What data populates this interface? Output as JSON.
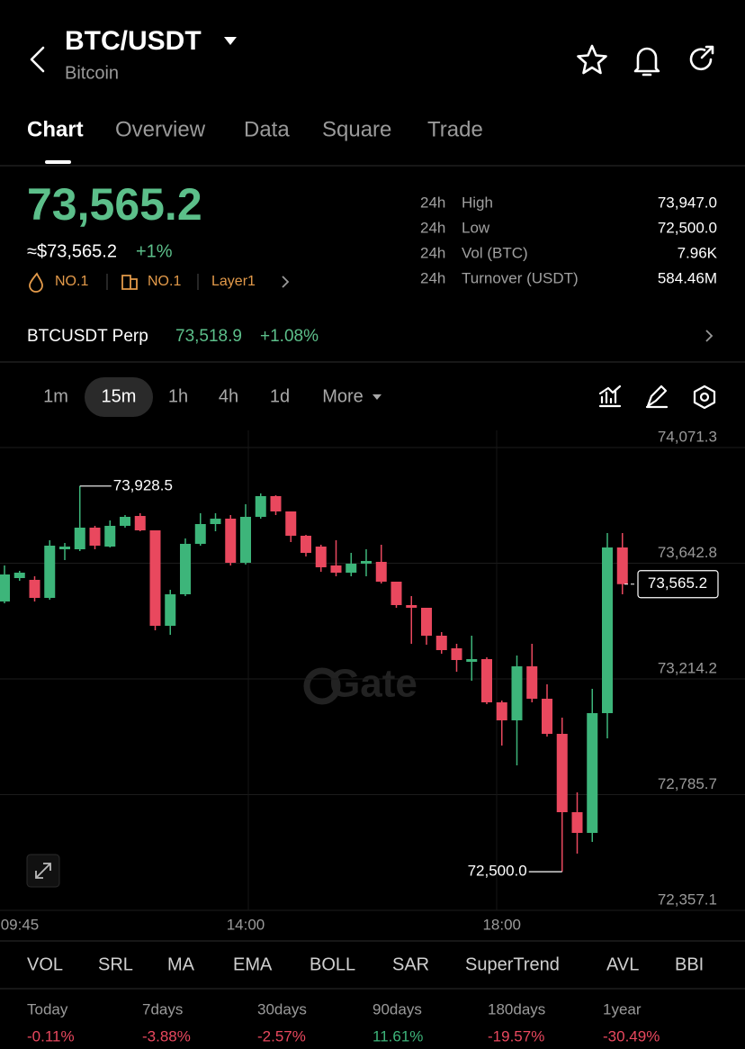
{
  "header": {
    "symbol": "BTC/USDT",
    "name": "Bitcoin"
  },
  "tabs": [
    "Chart",
    "Overview",
    "Data",
    "Square",
    "Trade"
  ],
  "price": {
    "last": "73,565.2",
    "approx": "≈$73,565.2",
    "change": "+1%",
    "badges": [
      "NO.1",
      "NO.1",
      "Layer1"
    ]
  },
  "stats": [
    {
      "period": "24h",
      "label": "High",
      "value": "73,947.0"
    },
    {
      "period": "24h",
      "label": "Low",
      "value": "72,500.0"
    },
    {
      "period": "24h",
      "label": "Vol (BTC)",
      "value": "7.96K"
    },
    {
      "period": "24h",
      "label": "Turnover (USDT)",
      "value": "584.46M"
    }
  ],
  "perp": {
    "name": "BTCUSDT Perp",
    "price": "73,518.9",
    "change": "+1.08%"
  },
  "timeframes": [
    "1m",
    "15m",
    "1h",
    "4h",
    "1d",
    "More"
  ],
  "watermark": "Gate",
  "chart_data": {
    "type": "candlestick",
    "up_color": "#3db57a",
    "down_color": "#e9485e",
    "grid": true,
    "categories": [
      "09:45",
      null,
      null,
      null,
      null,
      null,
      null,
      null,
      null,
      null,
      null,
      null,
      null,
      null,
      null,
      null,
      "14:00",
      null,
      null,
      null,
      null,
      null,
      null,
      null,
      null,
      null,
      null,
      null,
      null,
      null,
      null,
      null,
      null,
      "18:00",
      null,
      null,
      null,
      null,
      null,
      null,
      null,
      null
    ],
    "open": [
      73501.0,
      73587.7,
      73581.1,
      73514.3,
      73694.4,
      73694.4,
      73774.5,
      73704.4,
      73781.2,
      73817.8,
      73764.5,
      73411.0,
      73527.7,
      73714.5,
      73787.8,
      73807.8,
      73644.4,
      73814.5,
      73891.2,
      73834.5,
      73744.5,
      73704.4,
      73634.4,
      73607.7,
      73641.1,
      73647.8,
      73574.4,
      73487.7,
      73477.7,
      73374.3,
      73327.6,
      73277.6,
      73287.6,
      73127.5,
      73060.8,
      73260.9,
      73140.8,
      73010.8,
      72720.6,
      72643.9,
      73087.5,
      73701.1
    ],
    "high": [
      73634.4,
      73614.4,
      73594.4,
      73727.8,
      73717.8,
      73928.5,
      73781.2,
      73801.2,
      73821.2,
      73827.8,
      73764.5,
      73544.4,
      73734.5,
      73827.8,
      73827.8,
      73821.2,
      73861.2,
      73901.2,
      73894.5,
      73834.5,
      73747.8,
      73711.1,
      73727.8,
      73681.1,
      73694.4,
      73711.1,
      73574.4,
      73521.0,
      73477.7,
      73387.6,
      73344.3,
      73374.3,
      73294.2,
      73134.2,
      73300.9,
      73344.3,
      73194.2,
      73070.8,
      72794.0,
      73177.5,
      73754.5,
      73754.5
    ],
    "low": [
      73494.3,
      73577.7,
      73501.0,
      73507.7,
      73654.4,
      73687.8,
      73694.4,
      73701.1,
      73774.5,
      73761.1,
      73394.3,
      73377.6,
      73521.0,
      73707.8,
      73761.1,
      73634.4,
      73637.7,
      73807.8,
      73821.2,
      73721.1,
      73667.8,
      73611.1,
      73594.4,
      73594.4,
      73594.4,
      73567.7,
      73477.7,
      73344.3,
      73340.9,
      73307.6,
      73240.9,
      73207.5,
      73120.8,
      72967.4,
      72894.0,
      73127.5,
      73000.8,
      72500.0,
      72567.2,
      72610.6,
      72994.1,
      73527.7
    ],
    "close": [
      73601.1,
      73607.7,
      73514.3,
      73707.8,
      73704.4,
      73774.5,
      73707.8,
      73781.2,
      73814.5,
      73764.5,
      73411.0,
      73527.7,
      73714.5,
      73787.8,
      73807.8,
      73644.4,
      73814.5,
      73891.2,
      73834.5,
      73744.5,
      73681.1,
      73627.7,
      73607.7,
      73641.1,
      73651.1,
      73574.4,
      73487.7,
      73477.7,
      73374.3,
      73320.9,
      73284.2,
      73287.6,
      73127.5,
      73060.8,
      73260.9,
      73140.8,
      73010.8,
      72720.6,
      72643.9,
      73087.5,
      73701.1,
      73565.2
    ],
    "ylim": [
      72357.1,
      74071.3
    ],
    "yticks": [
      {
        "value": 74071.3,
        "label": "74,071.3"
      },
      {
        "value": 73642.8,
        "label": "73,642.8"
      },
      {
        "value": 73214.2,
        "label": "73,214.2"
      },
      {
        "value": 72785.7,
        "label": "72,785.7"
      },
      {
        "value": 72357.1,
        "label": "72,357.1"
      }
    ],
    "high_marker": {
      "value": 73928.5,
      "label": "73,928.5"
    },
    "low_marker": {
      "value": 72500.0,
      "label": "72,500.0"
    },
    "last_price": {
      "value": 73565.2,
      "label": "73,565.2"
    }
  },
  "indicators": [
    "VOL",
    "SRL",
    "MA",
    "EMA",
    "BOLL",
    "SAR",
    "SuperTrend",
    "AVL",
    "BBI"
  ],
  "returns": [
    {
      "period": "Today",
      "value": "-0.11%"
    },
    {
      "period": "7days",
      "value": "-3.88%"
    },
    {
      "period": "30days",
      "value": "-2.57%"
    },
    {
      "period": "90days",
      "value": "11.61%"
    },
    {
      "period": "180days",
      "value": "-19.57%"
    },
    {
      "period": "1year",
      "value": "-30.49%"
    }
  ]
}
